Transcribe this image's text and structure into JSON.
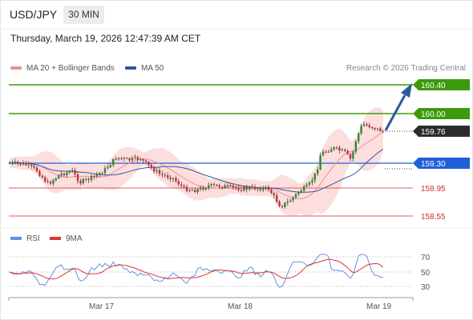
{
  "header": {
    "symbol": "USD/JPY",
    "timeframe": "30 MIN",
    "datetime": "Thursday, March 19, 2026 12:47:39 AM CET"
  },
  "legend": {
    "ma20_label": "MA 20 + Bollinger Bands",
    "ma50_label": "MA 50",
    "copyright": "Research © 2026 Trading Central"
  },
  "levels": {
    "target2": "160.40",
    "target1": "160.00",
    "current": "159.76",
    "pivot": "159.30",
    "support1": "158.95",
    "support2": "158.55"
  },
  "rsi_legend": {
    "rsi_label": "RSI",
    "ma_label": "9MA"
  },
  "rsi_axis": [
    "70",
    "50",
    "30"
  ],
  "x_axis": [
    "Mar 17",
    "Mar 18",
    "Mar 19"
  ],
  "colors": {
    "green_level": "#3d9a0d",
    "blue_level": "#1f5fd8",
    "red_level": "#e65a5a",
    "bollinger_fill": "#fbd3d3",
    "ma50": "#2b5a9b",
    "ma20": "#f08f8f",
    "candle_up": "#2e8b2e",
    "candle_down": "#d12d2d",
    "current_tag": "#2b2b2b",
    "rsi_line": "#6a8fe0",
    "rsi_ma": "#d83636"
  }
}
